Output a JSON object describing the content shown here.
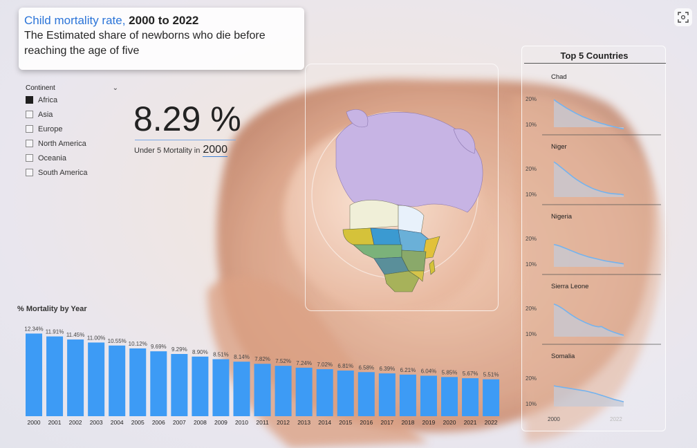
{
  "header": {
    "title_part1": "Child mortality rate, ",
    "title_part2": "2000 to 2022",
    "subtitle": "The Estimated share of newborns who die before reaching the age of five"
  },
  "toolbar": {
    "focus_icon": "focus-mode-icon"
  },
  "slicer": {
    "label": "Continent",
    "items": [
      {
        "label": "Africa",
        "checked": true
      },
      {
        "label": "Asia",
        "checked": false
      },
      {
        "label": "Europe",
        "checked": false
      },
      {
        "label": "North America",
        "checked": false
      },
      {
        "label": "Oceania",
        "checked": false
      },
      {
        "label": "South America",
        "checked": false
      }
    ]
  },
  "kpi": {
    "value": "8.29 %",
    "caption": "Under 5 Mortality in",
    "year": "2000"
  },
  "colors": {
    "bar": "#3d9bf5",
    "spark_line": "#74b3ee",
    "spark_fill": "#c5cad6",
    "title_accent": "#2b74d8"
  },
  "chart_data": [
    {
      "type": "bar",
      "title": "% Mortality by Year",
      "categories": [
        "2000",
        "2001",
        "2002",
        "2003",
        "2004",
        "2005",
        "2006",
        "2007",
        "2008",
        "2009",
        "2010",
        "2011",
        "2012",
        "2013",
        "2014",
        "2015",
        "2016",
        "2017",
        "2018",
        "2019",
        "2020",
        "2021",
        "2022"
      ],
      "values": [
        12.34,
        11.91,
        11.45,
        11.0,
        10.55,
        10.12,
        9.69,
        9.29,
        8.9,
        8.51,
        8.14,
        7.82,
        7.52,
        7.24,
        7.02,
        6.81,
        6.58,
        6.39,
        6.21,
        6.04,
        5.85,
        5.67,
        5.51
      ],
      "labels": [
        "12.34%",
        "11.91%",
        "11.45%",
        "11.00%",
        "10.55%",
        "10.12%",
        "9.69%",
        "9.29%",
        "8.90%",
        "8.51%",
        "8.14%",
        "7.82%",
        "7.52%",
        "7.24%",
        "7.02%",
        "6.81%",
        "6.58%",
        "6.39%",
        "6.21%",
        "6.04%",
        "5.85%",
        "5.67%",
        "5.51%"
      ],
      "ylim": [
        0,
        12.8
      ]
    },
    {
      "type": "area",
      "title": "Top 5 Countries",
      "x_start_label": "2000",
      "x_end_label": "2022",
      "y_ticks": [
        "20%",
        "10%"
      ],
      "series": [
        {
          "name": "Chad",
          "values": [
            20.5,
            19.6,
            18.8,
            18.0,
            17.2,
            16.5,
            15.8,
            15.1,
            14.5,
            13.9,
            13.4,
            12.9,
            12.4,
            12.0,
            11.6,
            11.2,
            10.9,
            10.5,
            10.2,
            9.9,
            9.6,
            9.3,
            9.1
          ]
        },
        {
          "name": "Niger",
          "values": [
            23.5,
            22.6,
            21.6,
            20.6,
            19.6,
            18.6,
            17.6,
            16.7,
            15.9,
            15.1,
            14.4,
            13.8,
            13.2,
            12.7,
            12.3,
            11.9,
            11.6,
            11.3,
            11.1,
            11.0,
            10.9,
            10.8,
            10.6
          ]
        },
        {
          "name": "Nigeria",
          "values": [
            18.5,
            18.2,
            17.8,
            17.3,
            16.8,
            16.3,
            15.8,
            15.3,
            14.8,
            14.4,
            14.0,
            13.6,
            13.3,
            13.0,
            12.7,
            12.4,
            12.1,
            11.9,
            11.7,
            11.5,
            11.3,
            11.1,
            10.9
          ]
        },
        {
          "name": "Sierra Leone",
          "values": [
            22.5,
            22.0,
            21.3,
            20.5,
            19.6,
            18.7,
            17.9,
            17.1,
            16.4,
            15.8,
            15.2,
            14.7,
            14.2,
            13.8,
            13.6,
            13.7,
            13.0,
            12.4,
            11.9,
            11.4,
            11.0,
            10.6,
            10.3
          ]
        },
        {
          "name": "Somalia",
          "values": [
            17.8,
            17.6,
            17.4,
            17.2,
            17.0,
            16.8,
            16.6,
            16.4,
            16.2,
            16.0,
            15.8,
            15.5,
            15.2,
            14.9,
            14.5,
            14.1,
            13.7,
            13.3,
            12.9,
            12.5,
            12.2,
            11.9,
            11.6
          ]
        }
      ]
    }
  ]
}
